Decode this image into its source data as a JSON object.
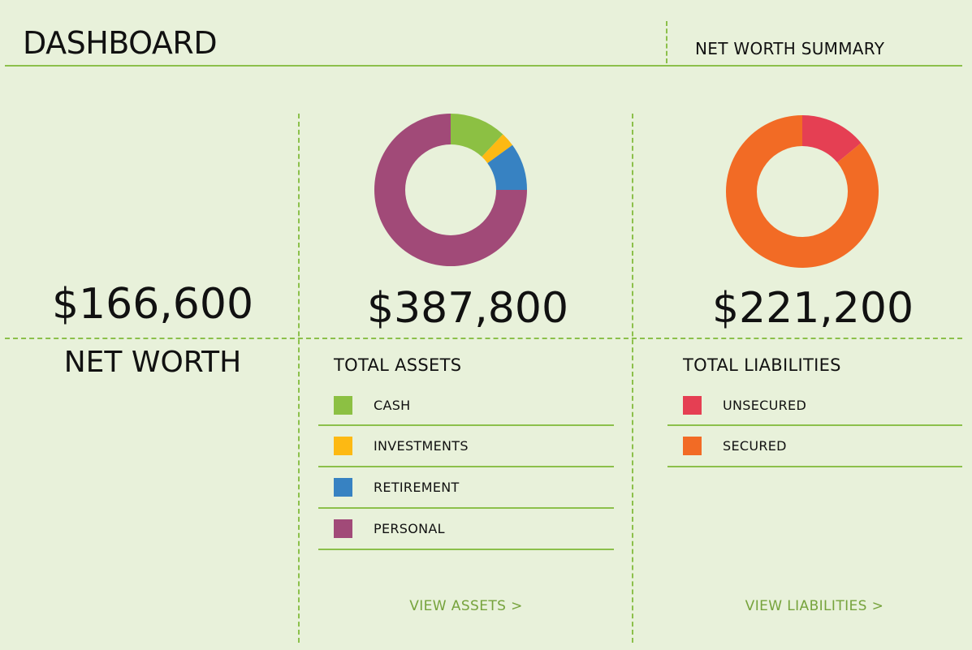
{
  "header": {
    "title": "DASHBOARD",
    "summary_title": "NET WORTH SUMMARY"
  },
  "net_worth": {
    "value": "$166,600",
    "label": "NET WORTH"
  },
  "assets": {
    "total": "$387,800",
    "label": "TOTAL ASSETS",
    "link": "VIEW ASSETS >",
    "items": [
      {
        "label": "CASH",
        "color": "#8cc043"
      },
      {
        "label": "INVESTMENTS",
        "color": "#fdb913"
      },
      {
        "label": "RETIREMENT",
        "color": "#3782c2"
      },
      {
        "label": "PERSONAL",
        "color": "#a14a78"
      }
    ]
  },
  "liabilities": {
    "total": "$221,200",
    "label": "TOTAL LIABILITIES",
    "link": "VIEW LIABILITIES >",
    "items": [
      {
        "label": "UNSECURED",
        "color": "#e53f53"
      },
      {
        "label": "SECURED",
        "color": "#f26b25"
      }
    ]
  },
  "chart_data": [
    {
      "type": "pie",
      "categories": [
        "CASH",
        "INVESTMENTS",
        "RETIREMENT",
        "PERSONAL"
      ],
      "values": [
        12,
        3,
        10,
        75
      ],
      "colors": [
        "#8cc043",
        "#fdb913",
        "#3782c2",
        "#a14a78"
      ],
      "donut": true
    },
    {
      "type": "pie",
      "categories": [
        "UNSECURED",
        "SECURED"
      ],
      "values": [
        14,
        86
      ],
      "colors": [
        "#e53f53",
        "#f26b25"
      ],
      "donut": true
    }
  ]
}
